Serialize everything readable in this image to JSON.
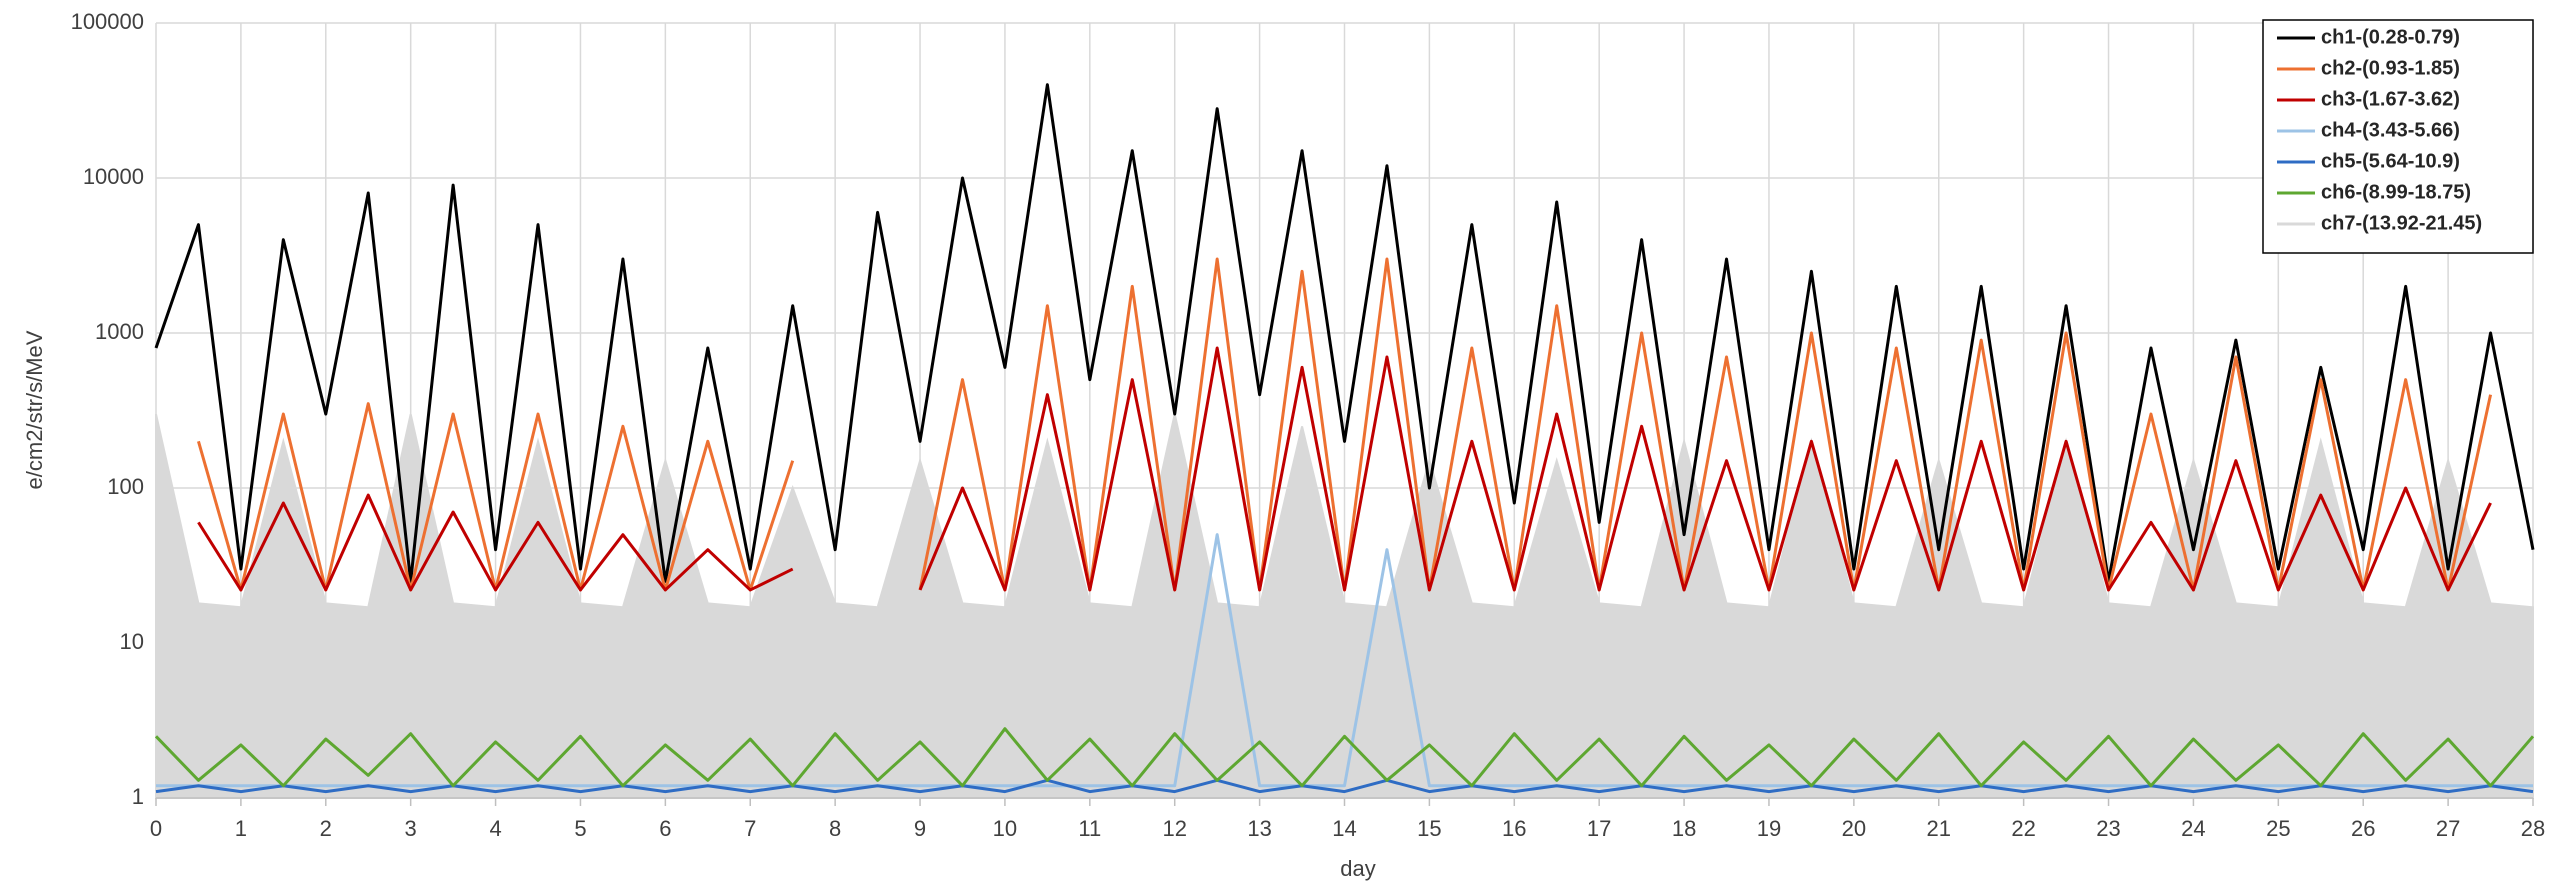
{
  "chart_data": {
    "type": "line",
    "x_label": "day",
    "y_label": "e/cm2/str/s/MeV",
    "log_y": true,
    "grid": true,
    "legend": "top-right",
    "xlim": [
      0,
      28
    ],
    "xticks": [
      0,
      1,
      2,
      3,
      4,
      5,
      6,
      7,
      8,
      9,
      10,
      11,
      12,
      13,
      14,
      15,
      16,
      17,
      18,
      19,
      20,
      21,
      22,
      23,
      24,
      25,
      26,
      27,
      28
    ],
    "ylim": [
      1,
      100000
    ],
    "yticks": [
      1,
      10,
      100,
      1000,
      10000,
      100000
    ],
    "x": [
      0,
      0.5,
      1,
      1.5,
      2,
      2.5,
      3,
      3.5,
      4,
      4.5,
      5,
      5.5,
      6,
      6.5,
      7,
      7.5,
      8,
      8.5,
      9,
      9.5,
      10,
      10.5,
      11,
      11.5,
      12,
      12.5,
      13,
      13.5,
      14,
      14.5,
      15,
      15.5,
      16,
      16.5,
      17,
      17.5,
      18,
      18.5,
      19,
      19.5,
      20,
      20.5,
      21,
      21.5,
      22,
      22.5,
      23,
      23.5,
      24,
      24.5,
      25,
      25.5,
      26,
      26.5,
      27,
      27.5,
      28
    ],
    "series": [
      {
        "name": "ch1-(0.28-0.79)",
        "color": "#000000",
        "values": [
          800,
          5000,
          30,
          4000,
          300,
          8000,
          25,
          9000,
          40,
          5000,
          30,
          3000,
          25,
          800,
          30,
          1500,
          40,
          6000,
          200,
          10000,
          600,
          40000,
          500,
          15000,
          300,
          28000,
          400,
          15000,
          200,
          12000,
          100,
          5000,
          80,
          7000,
          60,
          4000,
          50,
          3000,
          40,
          2500,
          30,
          2000,
          40,
          2000,
          30,
          1500,
          25,
          800,
          40,
          900,
          30,
          600,
          40,
          2000,
          30,
          1000,
          40
        ]
      },
      {
        "name": "ch2-(0.93-1.85)",
        "color": "#ed7031",
        "values": [
          null,
          200,
          22,
          300,
          22,
          350,
          22,
          300,
          22,
          300,
          22,
          250,
          22,
          200,
          22,
          150,
          null,
          null,
          22,
          500,
          22,
          1500,
          22,
          2000,
          22,
          3000,
          22,
          2500,
          22,
          3000,
          22,
          800,
          22,
          1500,
          22,
          1000,
          22,
          700,
          22,
          1000,
          22,
          800,
          22,
          900,
          22,
          1000,
          22,
          300,
          22,
          700,
          22,
          500,
          22,
          500,
          22,
          400,
          null
        ]
      },
      {
        "name": "ch3-(1.67-3.62)",
        "color": "#c00000",
        "values": [
          null,
          60,
          22,
          80,
          22,
          90,
          22,
          70,
          22,
          60,
          22,
          50,
          22,
          40,
          22,
          30,
          null,
          null,
          22,
          100,
          22,
          400,
          22,
          500,
          22,
          800,
          22,
          600,
          22,
          700,
          22,
          200,
          22,
          300,
          22,
          250,
          22,
          150,
          22,
          200,
          22,
          150,
          22,
          200,
          22,
          200,
          22,
          60,
          22,
          150,
          22,
          90,
          22,
          100,
          22,
          80,
          null
        ]
      },
      {
        "name": "ch4-(3.43-5.66)",
        "color": "#9dc3e6",
        "values": [
          1.2,
          1.2,
          1.2,
          1.2,
          1.2,
          1.2,
          1.2,
          1.2,
          1.2,
          1.2,
          1.2,
          1.2,
          1.2,
          1.2,
          1.2,
          1.2,
          1.2,
          1.2,
          1.2,
          1.2,
          1.2,
          1.2,
          1.2,
          1.2,
          1.2,
          50,
          1.2,
          1.2,
          1.2,
          40,
          1.2,
          1.2,
          1.2,
          1.2,
          1.2,
          1.2,
          1.2,
          1.2,
          1.2,
          1.2,
          1.2,
          1.2,
          1.2,
          1.2,
          1.2,
          1.2,
          1.2,
          1.2,
          1.2,
          1.2,
          1.2,
          1.2,
          1.2,
          1.2,
          1.2,
          1.2,
          1.2
        ]
      },
      {
        "name": "ch5-(5.64-10.9)",
        "color": "#2e6cc4",
        "values": [
          1.1,
          1.2,
          1.1,
          1.2,
          1.1,
          1.2,
          1.1,
          1.2,
          1.1,
          1.2,
          1.1,
          1.2,
          1.1,
          1.2,
          1.1,
          1.2,
          1.1,
          1.2,
          1.1,
          1.2,
          1.1,
          1.3,
          1.1,
          1.2,
          1.1,
          1.3,
          1.1,
          1.2,
          1.1,
          1.3,
          1.1,
          1.2,
          1.1,
          1.2,
          1.1,
          1.2,
          1.1,
          1.2,
          1.1,
          1.2,
          1.1,
          1.2,
          1.1,
          1.2,
          1.1,
          1.2,
          1.1,
          1.2,
          1.1,
          1.2,
          1.1,
          1.2,
          1.1,
          1.2,
          1.1,
          1.2,
          1.1
        ]
      },
      {
        "name": "ch6-(8.99-18.75)",
        "color": "#5ea731",
        "values": [
          2.5,
          1.3,
          2.2,
          1.2,
          2.4,
          1.4,
          2.6,
          1.2,
          2.3,
          1.3,
          2.5,
          1.2,
          2.2,
          1.3,
          2.4,
          1.2,
          2.6,
          1.3,
          2.3,
          1.2,
          2.8,
          1.3,
          2.4,
          1.2,
          2.6,
          1.3,
          2.3,
          1.2,
          2.5,
          1.3,
          2.2,
          1.2,
          2.6,
          1.3,
          2.4,
          1.2,
          2.5,
          1.3,
          2.2,
          1.2,
          2.4,
          1.3,
          2.6,
          1.2,
          2.3,
          1.3,
          2.5,
          1.2,
          2.4,
          1.3,
          2.2,
          1.2,
          2.6,
          1.3,
          2.4,
          1.2,
          2.5
        ]
      },
      {
        "name": "ch7-(13.92-21.45)",
        "color": "#d9d9d9",
        "values": [
          300,
          18,
          17,
          200,
          18,
          17,
          300,
          18,
          17,
          200,
          18,
          17,
          150,
          18,
          17,
          100,
          18,
          17,
          150,
          18,
          17,
          200,
          18,
          17,
          300,
          18,
          17,
          250,
          18,
          17,
          150,
          18,
          17,
          150,
          18,
          17,
          200,
          18,
          17,
          200,
          18,
          17,
          150,
          18,
          17,
          200,
          18,
          17,
          150,
          18,
          17,
          200,
          18,
          17,
          150,
          18,
          17
        ]
      }
    ]
  }
}
